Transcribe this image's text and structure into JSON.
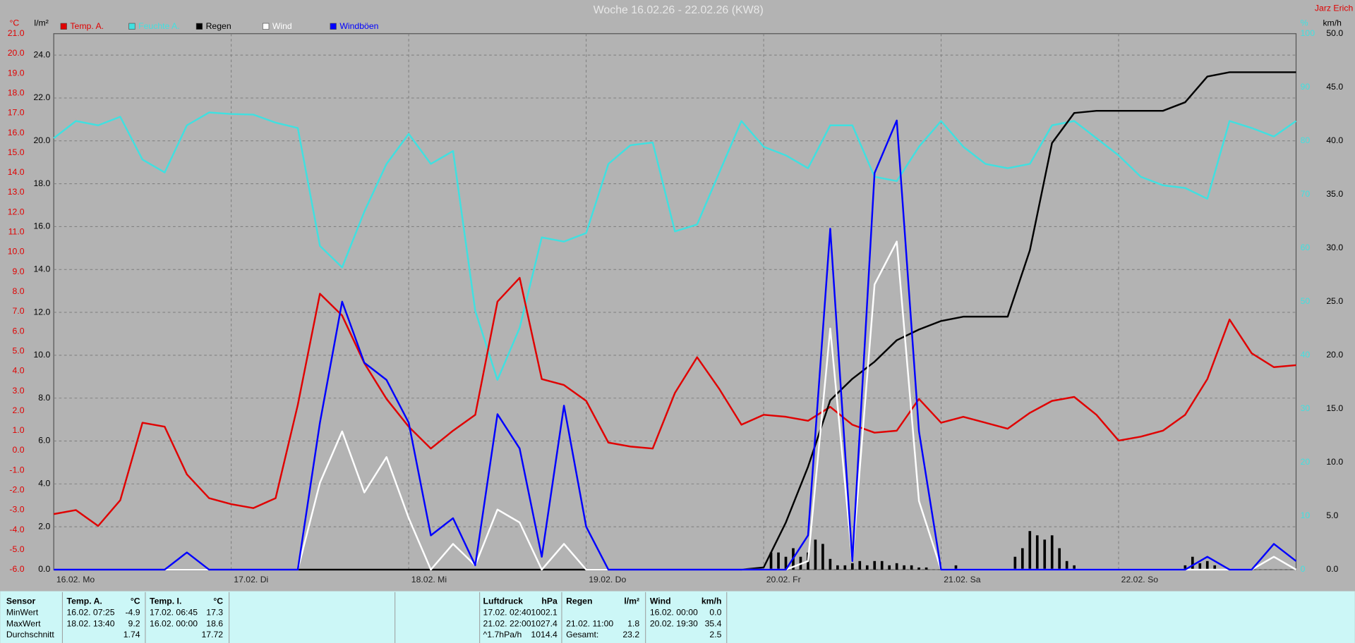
{
  "chart_data": {
    "type": "line",
    "title": "Woche 16.02.26 - 22.02.26 (KW8)",
    "author": "Jarz Erich",
    "grid": true,
    "x": [
      0,
      3,
      6,
      9,
      12,
      15,
      18,
      21,
      24,
      27,
      30,
      33,
      36,
      39,
      42,
      45,
      48,
      51,
      54,
      57,
      60,
      63,
      66,
      69,
      72,
      75,
      78,
      81,
      84,
      87,
      90,
      93,
      96,
      99,
      102,
      105,
      108,
      111,
      114,
      117,
      120,
      123,
      126,
      129,
      132,
      135,
      138,
      141,
      144,
      147,
      150,
      153,
      156,
      159,
      162,
      165,
      168
    ],
    "xlim": [
      0,
      168
    ],
    "xticks": [
      {
        "value": 0,
        "label": "16.02.  Mo"
      },
      {
        "value": 24,
        "label": "17.02.  Di"
      },
      {
        "value": 48,
        "label": "18.02.  Mi"
      },
      {
        "value": 72,
        "label": "19.02.  Do"
      },
      {
        "value": 96,
        "label": "20.02.  Fr"
      },
      {
        "value": 120,
        "label": "21.02.  Sa"
      },
      {
        "value": 144,
        "label": "22.02.  So"
      }
    ],
    "axes": {
      "temp": {
        "unit": "°C",
        "color": "#e00000",
        "ylim": [
          -6,
          21
        ],
        "yticks": [
          {
            "value": -6,
            "label": "-6.0"
          },
          {
            "value": -5,
            "label": "-5.0"
          },
          {
            "value": -4,
            "label": "-4.0"
          },
          {
            "value": -3,
            "label": "-3.0"
          },
          {
            "value": -2,
            "label": "-2.0"
          },
          {
            "value": -1,
            "label": "-1.0"
          },
          {
            "value": 0,
            "label": "0.0"
          },
          {
            "value": 1,
            "label": "1.0"
          },
          {
            "value": 2,
            "label": "2.0"
          },
          {
            "value": 3,
            "label": "3.0"
          },
          {
            "value": 4,
            "label": "4.0"
          },
          {
            "value": 5,
            "label": "5.0"
          },
          {
            "value": 6,
            "label": "6.0"
          },
          {
            "value": 7,
            "label": "7.0"
          },
          {
            "value": 8,
            "label": "8.0"
          },
          {
            "value": 9,
            "label": "9.0"
          },
          {
            "value": 10,
            "label": "10.0"
          },
          {
            "value": 11,
            "label": "11.0"
          },
          {
            "value": 12,
            "label": "12.0"
          },
          {
            "value": 13,
            "label": "13.0"
          },
          {
            "value": 14,
            "label": "14.0"
          },
          {
            "value": 15,
            "label": "15.0"
          },
          {
            "value": 16,
            "label": "16.0"
          },
          {
            "value": 17,
            "label": "17.0"
          },
          {
            "value": 18,
            "label": "18.0"
          },
          {
            "value": 19,
            "label": "19.0"
          },
          {
            "value": 20,
            "label": "20.0"
          },
          {
            "value": 21,
            "label": "21.0"
          }
        ]
      },
      "rain": {
        "unit": "l/m²",
        "color": "#000000",
        "ylim": [
          0,
          25
        ],
        "yticks": [
          {
            "value": 0,
            "label": "0.0"
          },
          {
            "value": 2,
            "label": "2.0"
          },
          {
            "value": 4,
            "label": "4.0"
          },
          {
            "value": 6,
            "label": "6.0"
          },
          {
            "value": 8,
            "label": "8.0"
          },
          {
            "value": 10,
            "label": "10.0"
          },
          {
            "value": 12,
            "label": "12.0"
          },
          {
            "value": 14,
            "label": "14.0"
          },
          {
            "value": 16,
            "label": "16.0"
          },
          {
            "value": 18,
            "label": "18.0"
          },
          {
            "value": 20,
            "label": "20.0"
          },
          {
            "value": 22,
            "label": "22.0"
          },
          {
            "value": 24,
            "label": "24.0"
          }
        ]
      },
      "hum": {
        "unit": "%",
        "color": "#40e0e0",
        "ylim": [
          0,
          100
        ],
        "yticks": [
          0,
          10,
          20,
          30,
          40,
          50,
          60,
          70,
          80,
          90,
          100
        ]
      },
      "wind": {
        "unit": "km/h",
        "color": "#000000",
        "ylim": [
          0,
          50
        ],
        "yticks": [
          {
            "value": 0,
            "label": "0.0"
          },
          {
            "value": 5,
            "label": "5.0"
          },
          {
            "value": 10,
            "label": "10.0"
          },
          {
            "value": 15,
            "label": "15.0"
          },
          {
            "value": 20,
            "label": "20.0"
          },
          {
            "value": 25,
            "label": "25.0"
          },
          {
            "value": 30,
            "label": "30.0"
          },
          {
            "value": 35,
            "label": "35.0"
          },
          {
            "value": 40,
            "label": "40.0"
          },
          {
            "value": 45,
            "label": "45.0"
          },
          {
            "value": 50,
            "label": "50.0"
          }
        ]
      }
    },
    "series": [
      {
        "name": "Temp. A.",
        "color": "#e00000",
        "axis": "temp",
        "values": [
          -3.2,
          -3.0,
          -3.8,
          -2.5,
          1.4,
          1.2,
          -1.2,
          -2.4,
          -2.7,
          -2.9,
          -2.4,
          2.3,
          7.9,
          6.8,
          4.4,
          2.6,
          1.2,
          0.1,
          1.0,
          1.8,
          7.5,
          8.7,
          3.6,
          3.3,
          2.5,
          0.4,
          0.2,
          0.1,
          2.9,
          4.7,
          3.1,
          1.3,
          1.8,
          1.7,
          1.5,
          2.2,
          1.3,
          0.9,
          1.0,
          2.6,
          1.4,
          1.7,
          1.4,
          1.1,
          1.9,
          2.5,
          2.7,
          1.8,
          0.5,
          0.7,
          1.0,
          1.8,
          3.6,
          6.6,
          4.9,
          4.2,
          4.3
        ]
      },
      {
        "name": "Feuchte A.",
        "color": "#40e0e0",
        "axis": "hum",
        "values": [
          80.5,
          83.7,
          82.9,
          84.5,
          76.5,
          74.1,
          82.9,
          85.3,
          85.0,
          84.9,
          83.4,
          82.4,
          60.4,
          56.4,
          66.8,
          75.7,
          81.3,
          75.7,
          78.1,
          48.3,
          35.4,
          45.1,
          62.0,
          61.2,
          62.8,
          75.7,
          79.2,
          79.7,
          63.1,
          64.4,
          74.1,
          83.7,
          78.9,
          77.3,
          74.9,
          82.9,
          82.9,
          73.3,
          72.5,
          78.9,
          83.7,
          78.9,
          75.7,
          74.9,
          75.7,
          82.9,
          83.7,
          80.5,
          77.3,
          73.3,
          71.7,
          71.2,
          69.2,
          83.7,
          82.4,
          80.8,
          83.7
        ]
      },
      {
        "name": "Regen",
        "color": "#000000",
        "axis": "rain",
        "values": [
          0,
          0,
          0,
          0,
          0,
          0,
          0,
          0,
          0,
          0,
          0,
          0,
          0,
          0,
          0,
          0,
          0,
          0,
          0,
          0,
          0,
          0,
          0,
          0,
          0,
          0,
          0,
          0,
          0,
          0,
          0,
          0,
          0.1,
          2.2,
          4.8,
          7.9,
          8.9,
          9.7,
          10.7,
          11.2,
          11.6,
          11.8,
          11.8,
          11.8,
          14.9,
          19.9,
          21.3,
          21.4,
          21.4,
          21.4,
          21.4,
          21.8,
          23.0,
          23.2,
          23.2,
          23.2,
          23.2
        ]
      },
      {
        "name": "Wind",
        "color": "#ffffff",
        "axis": "wind",
        "values": [
          0,
          0,
          0,
          0,
          0,
          0,
          0,
          0,
          0,
          0,
          0,
          0,
          8.1,
          12.9,
          7.2,
          10.5,
          4.8,
          0,
          2.4,
          0.4,
          5.6,
          4.4,
          0,
          2.4,
          0,
          0,
          0,
          0,
          0,
          0,
          0,
          0,
          0,
          0,
          0.8,
          22.5,
          0.8,
          26.6,
          30.6,
          6.4,
          0,
          0,
          0,
          0,
          0,
          0,
          0,
          0,
          0,
          0,
          0,
          0,
          0,
          0,
          0,
          1.2,
          0
        ]
      },
      {
        "name": "Windböen",
        "color": "#0000ff",
        "axis": "wind",
        "values": [
          0,
          0,
          0,
          0,
          0,
          0,
          1.6,
          0,
          0,
          0,
          0,
          0,
          13.7,
          25.0,
          19.3,
          17.7,
          13.7,
          3.2,
          4.8,
          0.4,
          14.5,
          11.3,
          1.2,
          15.3,
          4.0,
          0,
          0,
          0,
          0,
          0,
          0,
          0,
          0,
          0,
          3.2,
          31.8,
          0.8,
          37.0,
          41.9,
          12.9,
          0,
          0,
          0,
          0,
          0,
          0,
          0,
          0,
          0,
          0,
          0,
          0,
          1.2,
          0,
          0,
          2.4,
          0.8
        ]
      }
    ],
    "rain_bars": {
      "color": "#000000",
      "axis": "rain",
      "x": [
        97,
        98,
        99,
        100,
        101,
        102,
        103,
        104,
        105,
        106,
        107,
        108,
        109,
        110,
        111,
        112,
        113,
        114,
        115,
        116,
        117,
        118,
        122,
        130,
        131,
        132,
        133,
        134,
        135,
        136,
        137,
        138,
        153,
        154,
        155,
        156,
        157
      ],
      "values": [
        0.8,
        0.8,
        0.6,
        1.0,
        0.6,
        0.8,
        1.4,
        1.2,
        0.5,
        0.2,
        0.2,
        0.3,
        0.4,
        0.2,
        0.4,
        0.4,
        0.2,
        0.3,
        0.2,
        0.2,
        0.1,
        0.1,
        0.2,
        0.6,
        1.0,
        1.8,
        1.6,
        1.4,
        1.6,
        1.0,
        0.4,
        0.2,
        0.2,
        0.6,
        0.3,
        0.4,
        0.2
      ]
    }
  },
  "stats": {
    "row_labels": [
      "Sensor",
      "MinWert",
      "MaxWert",
      "Durchschnitt"
    ],
    "columns": [
      {
        "title": "Temp. A.",
        "unit": "°C",
        "rows": [
          [
            "16.02.  07:25",
            "-4.9"
          ],
          [
            "18.02.  13:40",
            "9.2"
          ],
          [
            null,
            "1.74"
          ]
        ]
      },
      {
        "title": "Temp. I.",
        "unit": "°C",
        "rows": [
          [
            "17.02.  06:45",
            "17.3"
          ],
          [
            "16.02.  00:00",
            "18.6"
          ],
          [
            null,
            "17.72"
          ]
        ]
      },
      {
        "title": "Luftdruck",
        "unit": "hPa",
        "rows": [
          [
            "17.02.  02:40",
            "1002.1"
          ],
          [
            "21.02.  22:00",
            "1027.4"
          ],
          [
            "^1.7hPa/h",
            "1014.4"
          ]
        ]
      },
      {
        "title": "Regen",
        "unit": "l/m²",
        "rows": [
          [
            null,
            null
          ],
          [
            "21.02.  11:00",
            "1.8"
          ],
          [
            "Gesamt:",
            "23.2"
          ]
        ]
      },
      {
        "title": "Wind",
        "unit": "km/h",
        "rows": [
          [
            "16.02.  00:00",
            "0.0"
          ],
          [
            "20.02.  19:30",
            "35.4"
          ],
          [
            null,
            "2.5"
          ]
        ]
      }
    ]
  }
}
